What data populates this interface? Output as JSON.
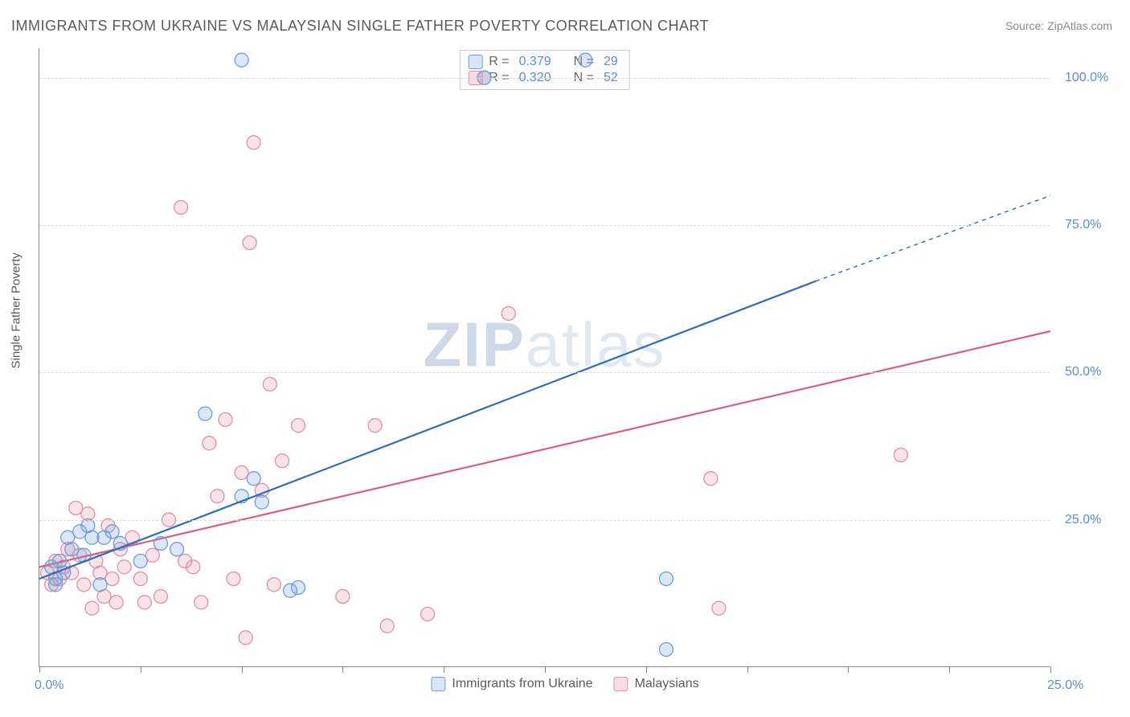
{
  "title": "IMMIGRANTS FROM UKRAINE VS MALAYSIAN SINGLE FATHER POVERTY CORRELATION CHART",
  "source": "Source: ZipAtlas.com",
  "y_axis_label": "Single Father Poverty",
  "watermark": {
    "zip": "ZIP",
    "atlas": "atlas"
  },
  "chart": {
    "type": "scatter",
    "background_color": "#ffffff",
    "grid_color": "#d8d8d8",
    "xlim": [
      0,
      25
    ],
    "ylim": [
      0,
      105
    ],
    "x_ticks": [
      0,
      2.5,
      5.0,
      7.5,
      10.0,
      12.5,
      15.0,
      17.5,
      20.0,
      22.5,
      25.0
    ],
    "x_tick_labels": {
      "0": "0.0%",
      "25": "25.0%"
    },
    "y_ticks": [
      25,
      50,
      75,
      100
    ],
    "y_tick_labels": {
      "25": "25.0%",
      "50": "50.0%",
      "75": "75.0%",
      "100": "100.0%"
    },
    "marker_radius": 8.5,
    "marker_fill_opacity": 0.25,
    "marker_stroke_width": 1.3,
    "line_width": 2.2,
    "tick_label_color": "#5b8fd6",
    "axis_label_color": "#5a5a5a",
    "axis_label_fontsize": 15,
    "title_fontsize": 18
  },
  "series": [
    {
      "name": "Immigrants from Ukraine",
      "color": "#6e9ed9",
      "line_color": "#2f6db8",
      "r": 0.379,
      "n": 29,
      "trend": {
        "x1": 0,
        "y1": 15,
        "x2": 19.2,
        "y2": 65.5,
        "dash_x2": 25,
        "dash_y2": 80
      },
      "points": [
        [
          0.3,
          17
        ],
        [
          0.4,
          15
        ],
        [
          0.5,
          18
        ],
        [
          0.6,
          16
        ],
        [
          0.7,
          22
        ],
        [
          0.8,
          20
        ],
        [
          1.0,
          23
        ],
        [
          1.1,
          19
        ],
        [
          1.2,
          24
        ],
        [
          1.3,
          22
        ],
        [
          1.5,
          14
        ],
        [
          1.6,
          22
        ],
        [
          1.8,
          23
        ],
        [
          2.0,
          21
        ],
        [
          2.5,
          18
        ],
        [
          3.0,
          21
        ],
        [
          3.4,
          20
        ],
        [
          4.1,
          43
        ],
        [
          5.0,
          29
        ],
        [
          5.0,
          103
        ],
        [
          5.3,
          32
        ],
        [
          5.5,
          28
        ],
        [
          6.2,
          13
        ],
        [
          6.4,
          13.5
        ],
        [
          13.5,
          103
        ],
        [
          15.5,
          15
        ],
        [
          15.5,
          3
        ],
        [
          11.0,
          100
        ],
        [
          0.4,
          14
        ]
      ]
    },
    {
      "name": "Malaysians",
      "color": "#e290a7",
      "line_color": "#d7607f",
      "r": 0.32,
      "n": 52,
      "trend": {
        "x1": 0,
        "y1": 17,
        "x2": 25,
        "y2": 57
      },
      "points": [
        [
          0.2,
          16
        ],
        [
          0.3,
          14
        ],
        [
          0.4,
          18
        ],
        [
          0.5,
          15
        ],
        [
          0.6,
          17
        ],
        [
          0.7,
          20
        ],
        [
          0.8,
          16
        ],
        [
          0.9,
          27
        ],
        [
          1.0,
          19
        ],
        [
          1.1,
          14
        ],
        [
          1.2,
          26
        ],
        [
          1.3,
          10
        ],
        [
          1.4,
          18
        ],
        [
          1.5,
          16
        ],
        [
          1.6,
          12
        ],
        [
          1.8,
          15
        ],
        [
          1.9,
          11
        ],
        [
          2.0,
          20
        ],
        [
          2.1,
          17
        ],
        [
          2.3,
          22
        ],
        [
          2.5,
          15
        ],
        [
          2.8,
          19
        ],
        [
          3.0,
          12
        ],
        [
          3.2,
          25
        ],
        [
          3.5,
          78
        ],
        [
          3.6,
          18
        ],
        [
          3.8,
          17
        ],
        [
          4.0,
          11
        ],
        [
          4.2,
          38
        ],
        [
          4.4,
          29
        ],
        [
          4.6,
          42
        ],
        [
          4.8,
          15
        ],
        [
          5.0,
          33
        ],
        [
          5.2,
          72
        ],
        [
          5.3,
          89
        ],
        [
          5.5,
          30
        ],
        [
          5.7,
          48
        ],
        [
          5.8,
          14
        ],
        [
          6.0,
          35
        ],
        [
          6.4,
          41
        ],
        [
          7.5,
          12
        ],
        [
          8.3,
          41
        ],
        [
          8.6,
          7
        ],
        [
          9.6,
          9
        ],
        [
          11.6,
          60
        ],
        [
          11.0,
          100
        ],
        [
          16.6,
          32
        ],
        [
          16.8,
          10
        ],
        [
          21.3,
          36
        ],
        [
          5.1,
          5
        ],
        [
          2.6,
          11
        ],
        [
          1.7,
          24
        ]
      ]
    }
  ],
  "legend_top": [
    {
      "swatch_fill": "#d8e5f4",
      "swatch_border": "#6e9ed9",
      "r_label": "R =",
      "r_val": "0.379",
      "n_label": "N =",
      "n_val": "29"
    },
    {
      "swatch_fill": "#f6dde4",
      "swatch_border": "#e290a7",
      "r_label": "R =",
      "r_val": "0.320",
      "n_label": "N =",
      "n_val": "52"
    }
  ],
  "legend_bottom": [
    {
      "swatch_fill": "#d8e5f4",
      "swatch_border": "#6e9ed9",
      "label": "Immigrants from Ukraine"
    },
    {
      "swatch_fill": "#f6dde4",
      "swatch_border": "#e290a7",
      "label": "Malaysians"
    }
  ]
}
